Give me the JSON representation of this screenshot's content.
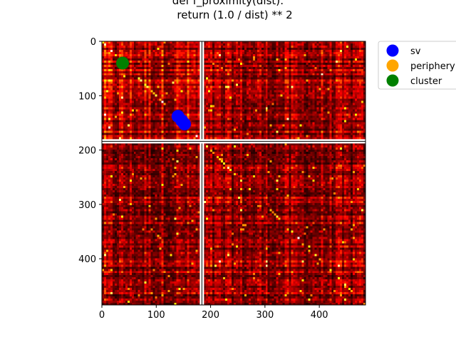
{
  "chart_data": {
    "type": "heatmap",
    "title_lines": [
      "def f_proximity(dist):",
      "    return (1.0 / dist) ** 2"
    ],
    "colormap": "hot",
    "matrix_size": 485,
    "gap_index": 184,
    "x_ticks": [
      0,
      100,
      200,
      300,
      400
    ],
    "y_ticks": [
      0,
      100,
      200,
      300,
      400
    ],
    "xlim": [
      0,
      485
    ],
    "ylim": [
      485,
      0
    ],
    "series": [
      {
        "name": "sv",
        "color": "#0000ff",
        "points": [
          [
            140,
            138
          ],
          [
            147,
            146
          ],
          [
            152,
            152
          ]
        ]
      },
      {
        "name": "periphery",
        "color": "#ffa500",
        "points": []
      },
      {
        "name": "cluster",
        "color": "#008000",
        "points": [
          [
            38,
            40
          ]
        ]
      }
    ],
    "legend_position": "upper-right-outside"
  }
}
